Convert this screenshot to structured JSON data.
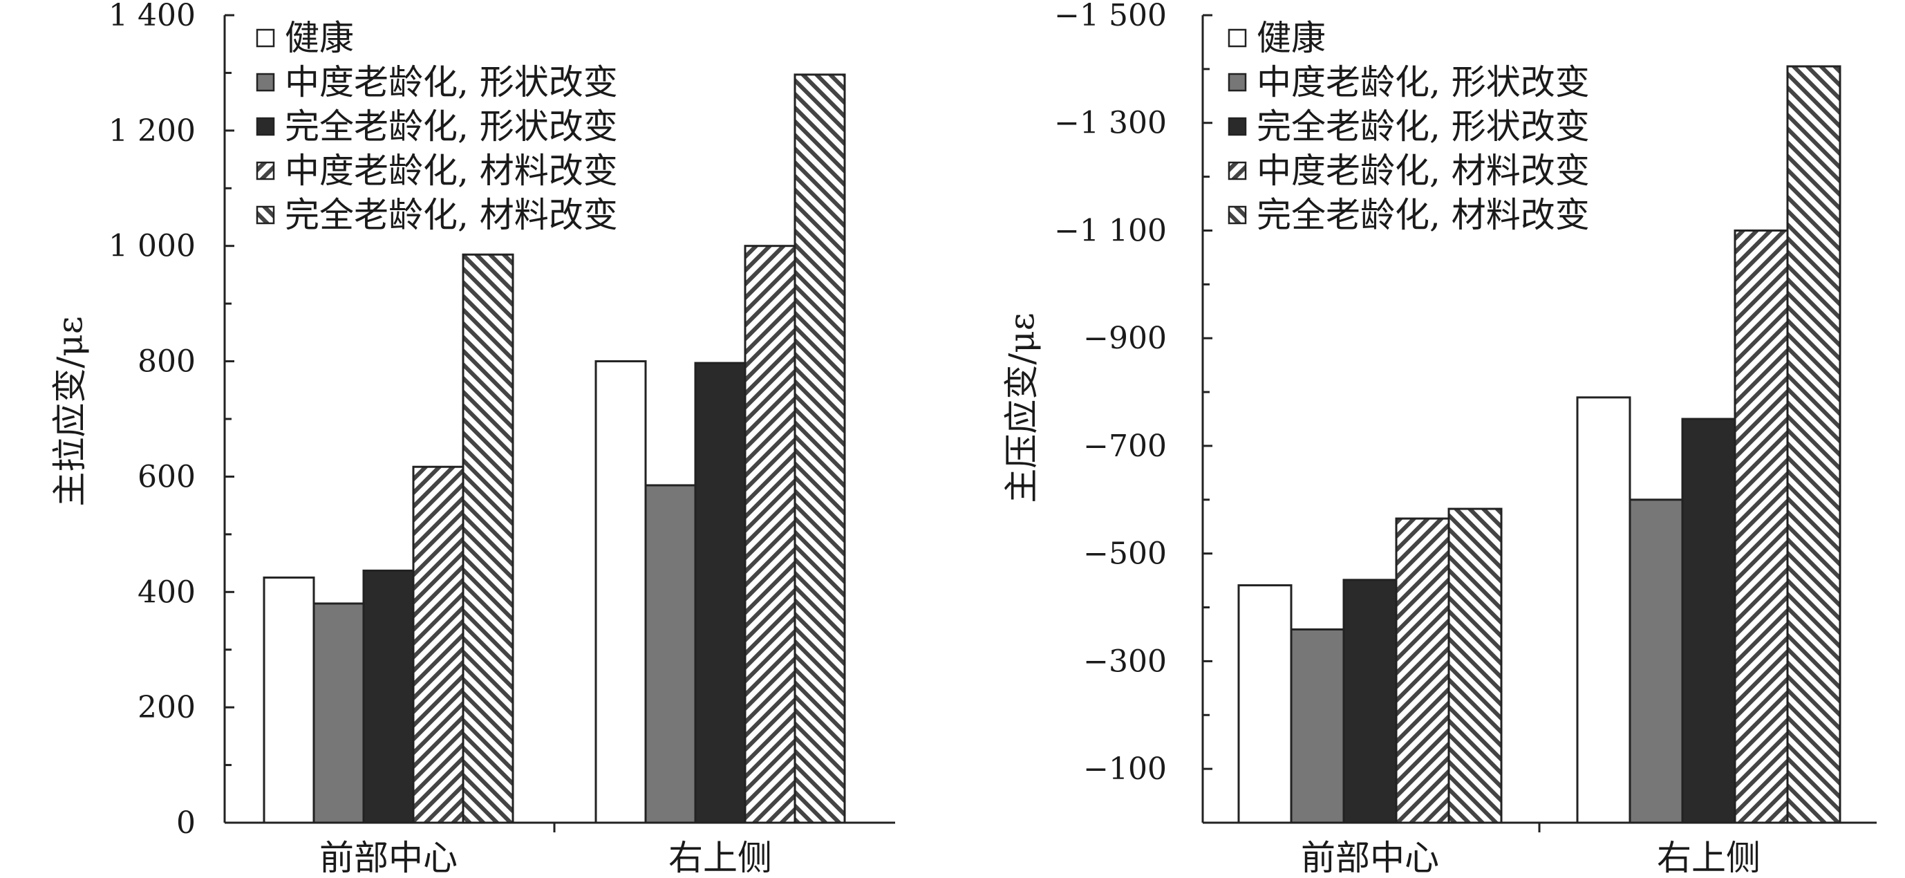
{
  "series_styles": [
    {
      "fill": "#ffffff",
      "pattern": "none"
    },
    {
      "fill": "#777777",
      "pattern": "none"
    },
    {
      "fill": "#2a2a2a",
      "pattern": "none"
    },
    {
      "fill": "#ffffff",
      "pattern": "hatch-right"
    },
    {
      "fill": "#ffffff",
      "pattern": "hatch-left"
    }
  ],
  "chart_data": [
    {
      "type": "bar",
      "ylabel": "主拉应变/με",
      "categories": [
        "前部中心",
        "右上侧"
      ],
      "series": [
        {
          "name": "健康",
          "values": [
            425,
            800
          ]
        },
        {
          "name": "中度老龄化, 形状改变",
          "values": [
            380,
            585
          ]
        },
        {
          "name": "完全老龄化, 形状改变",
          "values": [
            437,
            797
          ]
        },
        {
          "name": "中度老龄化, 材料改变",
          "values": [
            617,
            1000
          ]
        },
        {
          "name": "完全老龄化, 材料改变",
          "values": [
            985,
            1297
          ]
        }
      ],
      "ylim": [
        0,
        1400
      ],
      "yticks": [
        0,
        200,
        400,
        600,
        800,
        1000,
        1200,
        1400
      ],
      "ytick_labels": [
        "0",
        "200",
        "400",
        "600",
        "800",
        "1 000",
        "1 200",
        "1 400"
      ],
      "grid": false,
      "legend": "top-left"
    },
    {
      "type": "bar",
      "ylabel": "主压应变/με",
      "categories": [
        "前部中心",
        "右上侧"
      ],
      "series": [
        {
          "name": "健康",
          "values": [
            -441,
            -790
          ]
        },
        {
          "name": "中度老龄化, 形状改变",
          "values": [
            -359,
            -600
          ]
        },
        {
          "name": "完全老龄化, 形状改变",
          "values": [
            -451,
            -750
          ]
        },
        {
          "name": "中度老龄化, 材料改变",
          "values": [
            -565,
            -1100
          ]
        },
        {
          "name": "完全老龄化, 材料改变",
          "values": [
            -583,
            -1405
          ]
        }
      ],
      "ylim": [
        0,
        -1500
      ],
      "yticks": [
        -100,
        -300,
        -500,
        -700,
        -900,
        -1100,
        -1300,
        -1500
      ],
      "ytick_labels": [
        "−100",
        "−300",
        "−500",
        "−700",
        "−900",
        "−1 100",
        "−1 300",
        "−1 500"
      ],
      "grid": false,
      "legend": "top-left"
    }
  ]
}
